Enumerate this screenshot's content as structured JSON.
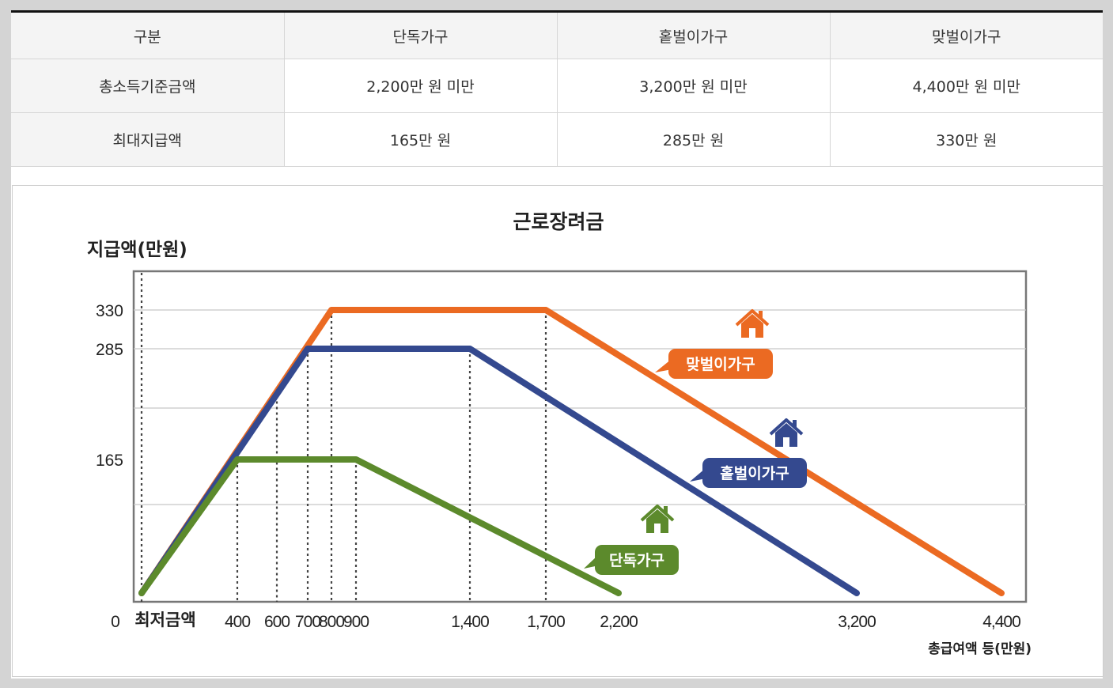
{
  "table": {
    "headers": [
      "구분",
      "단독가구",
      "홑벌이가구",
      "맞벌이가구"
    ],
    "rows": [
      {
        "label": "총소득기준금액",
        "values": [
          "2,200만 원 미만",
          "3,200만 원 미만",
          "4,400만 원 미만"
        ]
      },
      {
        "label": "최대지급액",
        "values": [
          "165만 원",
          "285만 원",
          "330만 원"
        ]
      }
    ]
  },
  "chart_data": {
    "type": "line",
    "title": "근로장려금",
    "ylabel": "지급액(만원)",
    "xlabel": "총급여액 등(만원)",
    "x_origin_label": "0",
    "x_min_label": "최저금액",
    "x_ticks": [
      "400",
      "600",
      "700",
      "800",
      "900",
      "1,400",
      "1,700",
      "2,200",
      "3,200",
      "4,400"
    ],
    "y_ticks": [
      "330",
      "285",
      "165"
    ],
    "colors": {
      "single": "#5c8a2c",
      "one_earner": "#34498f",
      "dual": "#eb6a22"
    },
    "series": [
      {
        "name": "맞벌이가구",
        "key": "dual",
        "x": [
          0,
          800,
          1700,
          4400
        ],
        "y": [
          0,
          330,
          330,
          0
        ]
      },
      {
        "name": "홑벌이가구",
        "key": "one_earner",
        "x": [
          0,
          700,
          1400,
          3200
        ],
        "y": [
          0,
          285,
          285,
          0
        ]
      },
      {
        "name": "단독가구",
        "key": "single",
        "x": [
          0,
          400,
          900,
          2200
        ],
        "y": [
          0,
          165,
          165,
          0
        ]
      }
    ],
    "icons": [
      "house-icon"
    ]
  }
}
